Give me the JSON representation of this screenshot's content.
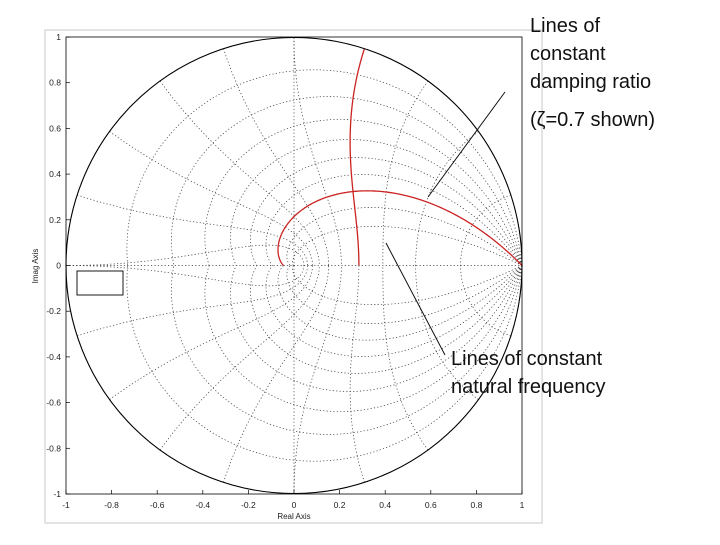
{
  "figure": {
    "x_axis_label": "Real Axis",
    "y_axis_label": "Imag Axis",
    "x_ticks": [
      "-1",
      "-0.8",
      "-0.6",
      "-0.4",
      "-0.2",
      "0",
      "0.2",
      "0.4",
      "0.6",
      "0.8",
      "1"
    ],
    "y_ticks": [
      "1",
      "0.8",
      "0.6",
      "0.4",
      "0.2",
      "0",
      "-0.2",
      "-0.4",
      "-0.6",
      "-0.8",
      "-1"
    ],
    "highlight_color": "#cc2222",
    "grid_color": "#333333"
  },
  "annotations": {
    "damping": {
      "lines": [
        "Lines of",
        "constant",
        "damping ratio",
        "(ζ=0.7 shown)"
      ]
    },
    "frequency": {
      "lines": [
        "Lines of constant",
        "natural frequency"
      ]
    }
  }
}
